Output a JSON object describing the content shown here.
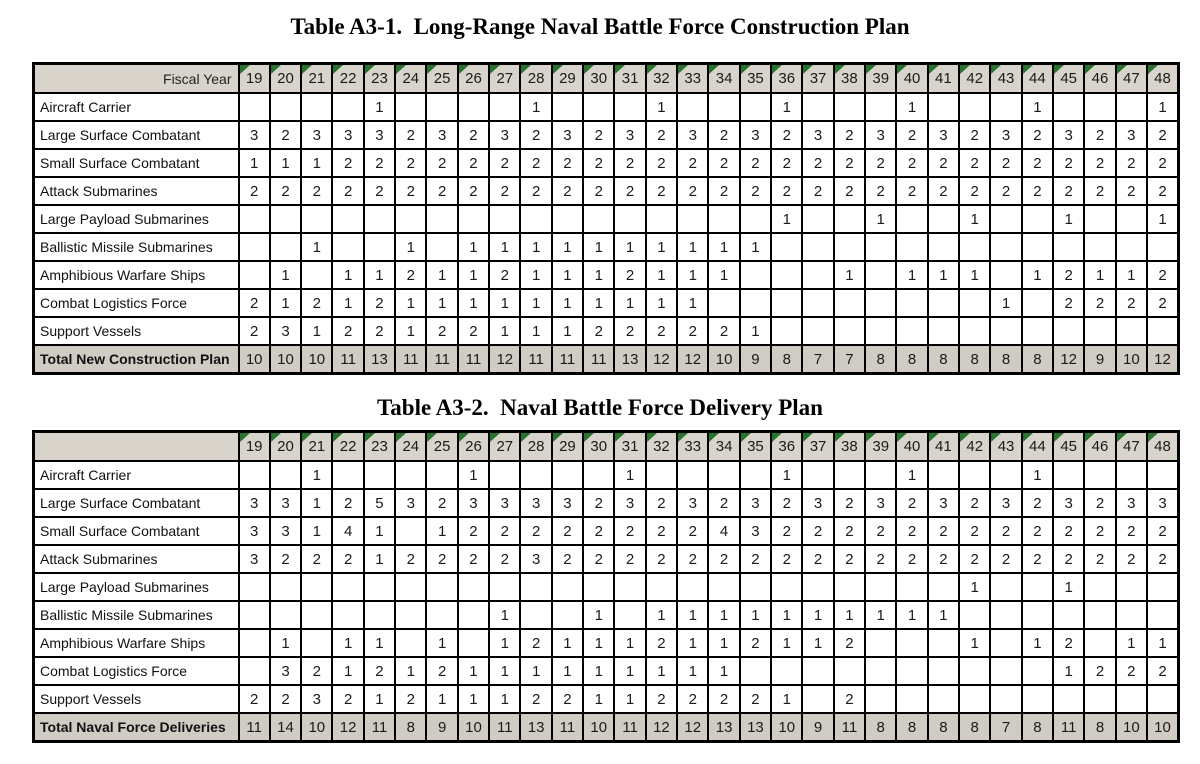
{
  "fiscal_years": [
    "19",
    "20",
    "21",
    "22",
    "23",
    "24",
    "25",
    "26",
    "27",
    "28",
    "29",
    "30",
    "31",
    "32",
    "33",
    "34",
    "35",
    "36",
    "37",
    "38",
    "39",
    "40",
    "41",
    "42",
    "43",
    "44",
    "45",
    "46",
    "47",
    "48"
  ],
  "colors": {
    "header_bg": "#d8d4cc",
    "total_bg": "#d0ccc4",
    "triangle_green": "#26722e",
    "border": "#000000"
  },
  "tables": [
    {
      "title": "Table A3-1.  Long-Range Naval Battle Force Construction Plan",
      "corner_label": "Fiscal Year",
      "rows": [
        {
          "label": "Aircraft Carrier",
          "values": [
            "",
            "",
            "",
            "",
            "1",
            "",
            "",
            "",
            "",
            "1",
            "",
            "",
            "",
            "1",
            "",
            "",
            "",
            "1",
            "",
            "",
            "",
            "1",
            "",
            "",
            "",
            "1",
            "",
            "",
            "",
            "1"
          ]
        },
        {
          "label": "Large Surface Combatant",
          "values": [
            "3",
            "2",
            "3",
            "3",
            "3",
            "2",
            "3",
            "2",
            "3",
            "2",
            "3",
            "2",
            "3",
            "2",
            "3",
            "2",
            "3",
            "2",
            "3",
            "2",
            "3",
            "2",
            "3",
            "2",
            "3",
            "2",
            "3",
            "2",
            "3",
            "2"
          ]
        },
        {
          "label": "Small Surface Combatant",
          "values": [
            "1",
            "1",
            "1",
            "2",
            "2",
            "2",
            "2",
            "2",
            "2",
            "2",
            "2",
            "2",
            "2",
            "2",
            "2",
            "2",
            "2",
            "2",
            "2",
            "2",
            "2",
            "2",
            "2",
            "2",
            "2",
            "2",
            "2",
            "2",
            "2",
            "2"
          ]
        },
        {
          "label": "Attack Submarines",
          "values": [
            "2",
            "2",
            "2",
            "2",
            "2",
            "2",
            "2",
            "2",
            "2",
            "2",
            "2",
            "2",
            "2",
            "2",
            "2",
            "2",
            "2",
            "2",
            "2",
            "2",
            "2",
            "2",
            "2",
            "2",
            "2",
            "2",
            "2",
            "2",
            "2",
            "2"
          ]
        },
        {
          "label": "Large Payload Submarines",
          "values": [
            "",
            "",
            "",
            "",
            "",
            "",
            "",
            "",
            "",
            "",
            "",
            "",
            "",
            "",
            "",
            "",
            "",
            "1",
            "",
            "",
            "1",
            "",
            "",
            "1",
            "",
            "",
            "1",
            "",
            "",
            "1"
          ]
        },
        {
          "label": "Ballistic Missile Submarines",
          "values": [
            "",
            "",
            "1",
            "",
            "",
            "1",
            "",
            "1",
            "1",
            "1",
            "1",
            "1",
            "1",
            "1",
            "1",
            "1",
            "1",
            "",
            "",
            "",
            "",
            "",
            "",
            "",
            "",
            "",
            "",
            "",
            "",
            ""
          ]
        },
        {
          "label": "Amphibious Warfare Ships",
          "values": [
            "",
            "1",
            "",
            "1",
            "1",
            "2",
            "1",
            "1",
            "2",
            "1",
            "1",
            "1",
            "2",
            "1",
            "1",
            "1",
            "",
            "",
            "",
            "1",
            "",
            "1",
            "1",
            "1",
            "",
            "1",
            "2",
            "1",
            "1",
            "2"
          ]
        },
        {
          "label": "Combat Logistics Force",
          "values": [
            "2",
            "1",
            "2",
            "1",
            "2",
            "1",
            "1",
            "1",
            "1",
            "1",
            "1",
            "1",
            "1",
            "1",
            "1",
            "",
            "",
            "",
            "",
            "",
            "",
            "",
            "",
            "",
            "1",
            "",
            "2",
            "2",
            "2",
            "2"
          ]
        },
        {
          "label": "Support Vessels",
          "values": [
            "2",
            "3",
            "1",
            "2",
            "2",
            "1",
            "2",
            "2",
            "1",
            "1",
            "1",
            "2",
            "2",
            "2",
            "2",
            "2",
            "1",
            "",
            "",
            "",
            "",
            "",
            "",
            "",
            "",
            "",
            "",
            "",
            "",
            ""
          ]
        }
      ],
      "total": {
        "label": "Total New Construction Plan",
        "values": [
          "10",
          "10",
          "10",
          "11",
          "13",
          "11",
          "11",
          "11",
          "12",
          "11",
          "11",
          "11",
          "13",
          "12",
          "12",
          "10",
          "9",
          "8",
          "7",
          "7",
          "8",
          "8",
          "8",
          "8",
          "8",
          "8",
          "12",
          "9",
          "10",
          "12"
        ]
      }
    },
    {
      "title": "Table A3-2.  Naval Battle Force Delivery Plan",
      "corner_label": "",
      "rows": [
        {
          "label": "Aircraft Carrier",
          "values": [
            "",
            "",
            "1",
            "",
            "",
            "",
            "",
            "1",
            "",
            "",
            "",
            "",
            "1",
            "",
            "",
            "",
            "",
            "1",
            "",
            "",
            "",
            "1",
            "",
            "",
            "",
            "1",
            "",
            "",
            "",
            ""
          ]
        },
        {
          "label": "Large Surface Combatant",
          "values": [
            "3",
            "3",
            "1",
            "2",
            "5",
            "3",
            "2",
            "3",
            "3",
            "3",
            "3",
            "2",
            "3",
            "2",
            "3",
            "2",
            "3",
            "2",
            "3",
            "2",
            "3",
            "2",
            "3",
            "2",
            "3",
            "2",
            "3",
            "2",
            "3",
            "3"
          ]
        },
        {
          "label": "Small Surface Combatant",
          "values": [
            "3",
            "3",
            "1",
            "4",
            "1",
            "",
            "1",
            "2",
            "2",
            "2",
            "2",
            "2",
            "2",
            "2",
            "2",
            "4",
            "3",
            "2",
            "2",
            "2",
            "2",
            "2",
            "2",
            "2",
            "2",
            "2",
            "2",
            "2",
            "2",
            "2"
          ]
        },
        {
          "label": "Attack Submarines",
          "values": [
            "3",
            "2",
            "2",
            "2",
            "1",
            "2",
            "2",
            "2",
            "2",
            "3",
            "2",
            "2",
            "2",
            "2",
            "2",
            "2",
            "2",
            "2",
            "2",
            "2",
            "2",
            "2",
            "2",
            "2",
            "2",
            "2",
            "2",
            "2",
            "2",
            "2"
          ]
        },
        {
          "label": "Large Payload Submarines",
          "values": [
            "",
            "",
            "",
            "",
            "",
            "",
            "",
            "",
            "",
            "",
            "",
            "",
            "",
            "",
            "",
            "",
            "",
            "",
            "",
            "",
            "",
            "",
            "",
            "1",
            "",
            "",
            "1",
            "",
            "",
            ""
          ]
        },
        {
          "label": "Ballistic Missile Submarines",
          "values": [
            "",
            "",
            "",
            "",
            "",
            "",
            "",
            "",
            "1",
            "",
            "",
            "1",
            "",
            "1",
            "1",
            "1",
            "1",
            "1",
            "1",
            "1",
            "1",
            "1",
            "1",
            "",
            "",
            "",
            "",
            "",
            "",
            ""
          ]
        },
        {
          "label": "Amphibious Warfare Ships",
          "values": [
            "",
            "1",
            "",
            "1",
            "1",
            "",
            "1",
            "",
            "1",
            "2",
            "1",
            "1",
            "1",
            "2",
            "1",
            "1",
            "2",
            "1",
            "1",
            "2",
            "",
            "",
            "",
            "1",
            "",
            "1",
            "2",
            "",
            "1",
            "1"
          ]
        },
        {
          "label": "Combat Logistics Force",
          "values": [
            "",
            "3",
            "2",
            "1",
            "2",
            "1",
            "2",
            "1",
            "1",
            "1",
            "1",
            "1",
            "1",
            "1",
            "1",
            "1",
            "",
            "",
            "",
            "",
            "",
            "",
            "",
            "",
            "",
            "",
            "1",
            "2",
            "2",
            "2"
          ]
        },
        {
          "label": "Support Vessels",
          "values": [
            "2",
            "2",
            "3",
            "2",
            "1",
            "2",
            "1",
            "1",
            "1",
            "2",
            "2",
            "1",
            "1",
            "2",
            "2",
            "2",
            "2",
            "1",
            "",
            "2",
            "",
            "",
            "",
            "",
            "",
            "",
            "",
            "",
            "",
            ""
          ]
        }
      ],
      "total": {
        "label": "Total Naval Force Deliveries",
        "values": [
          "11",
          "14",
          "10",
          "12",
          "11",
          "8",
          "9",
          "10",
          "11",
          "13",
          "11",
          "10",
          "11",
          "12",
          "12",
          "13",
          "13",
          "10",
          "9",
          "11",
          "8",
          "8",
          "8",
          "8",
          "7",
          "8",
          "11",
          "8",
          "10",
          "10"
        ]
      }
    }
  ]
}
